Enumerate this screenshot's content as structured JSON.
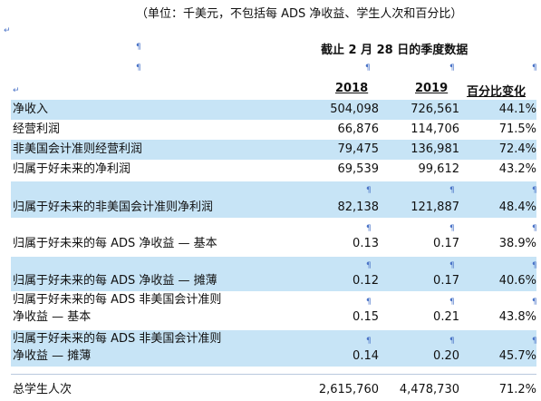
{
  "unit_note": "（单位：千美元，不包括每 ADS 净收益、学生人次和百分比）",
  "period_header": "截止 2 月 28 日的季度数据",
  "columns": [
    "2018",
    "2019",
    "百分比变化"
  ],
  "rows": [
    {
      "label": "净收入",
      "v2018": "504,098",
      "v2019": "726,561",
      "pct": "44.1%"
    },
    {
      "label": "经营利润",
      "v2018": "66,876",
      "v2019": "114,706",
      "pct": "71.5%"
    },
    {
      "label": "非美国会计准则经营利润",
      "v2018": "79,475",
      "v2019": "136,981",
      "pct": "72.4%"
    },
    {
      "label": "归属于好未来的净利润",
      "v2018": "69,539",
      "v2019": "99,612",
      "pct": "43.2%"
    },
    {
      "label": "归属于好未来的非美国会计准则净利润",
      "v2018": "82,138",
      "v2019": "121,887",
      "pct": "48.4%"
    },
    {
      "label": "归属于好未来的每 ADS 净收益 — 基本",
      "v2018": "0.13",
      "v2019": "0.17",
      "pct": "38.9%"
    },
    {
      "label": "归属于好未来的每 ADS 净收益 — 摊薄",
      "v2018": "0.12",
      "v2019": "0.17",
      "pct": "40.6%"
    },
    {
      "label_line1": "归属于好未来的每 ADS 非美国会计准则",
      "label_line2": "净收益 — 基本",
      "v2018": "0.15",
      "v2019": "0.21",
      "pct": "43.8%"
    },
    {
      "label_line1": "归属于好未来的每 ADS 非美国会计准则",
      "label_line2": "净收益 — 摊薄",
      "v2018": "0.14",
      "v2019": "0.20",
      "pct": "45.7%"
    },
    {
      "label": "总学生人次",
      "v2018": "2,615,760",
      "v2019": "4,478,730",
      "pct": "71.2%"
    }
  ],
  "colors": {
    "row_shade": "#c7e4f6",
    "edit_mark": "#4a73c7"
  },
  "icons": {
    "paragraph_mark": "↵",
    "anchor_mark": "¶"
  }
}
